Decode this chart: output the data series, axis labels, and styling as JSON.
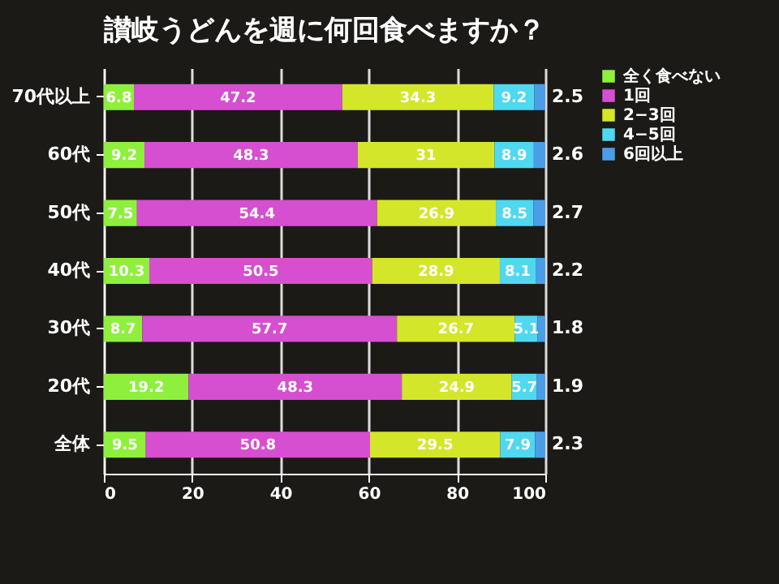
{
  "chart_data": {
    "type": "bar",
    "orientation": "horizontal",
    "stacked": true,
    "title": "讃岐うどんを週に何回食べますか？",
    "categories": [
      "70代以上",
      "60代",
      "50代",
      "40代",
      "30代",
      "20代",
      "全体"
    ],
    "series": [
      {
        "name": "全く食べない",
        "color": "#8ef03c",
        "values": [
          6.8,
          9.2,
          7.5,
          10.3,
          8.7,
          19.2,
          9.5
        ]
      },
      {
        "name": "1回",
        "color": "#d64fd0",
        "values": [
          47.2,
          48.3,
          54.4,
          50.5,
          57.7,
          48.3,
          50.8
        ]
      },
      {
        "name": "2−3回",
        "color": "#d4e62a",
        "values": [
          34.3,
          31,
          26.9,
          28.9,
          26.7,
          24.9,
          29.5
        ]
      },
      {
        "name": "4−5回",
        "color": "#4fd8f0",
        "values": [
          9.2,
          8.9,
          8.5,
          8.1,
          5.1,
          5.7,
          7.9
        ]
      },
      {
        "name": "6回以上",
        "color": "#4a9ee8",
        "values": [
          2.5,
          2.6,
          2.7,
          2.2,
          1.8,
          1.9,
          2.3
        ]
      }
    ],
    "xlim": [
      0,
      100
    ],
    "xticks": [
      0,
      20,
      40,
      60,
      80,
      100
    ],
    "grid": "x",
    "legend": "right",
    "data_labels": true
  }
}
